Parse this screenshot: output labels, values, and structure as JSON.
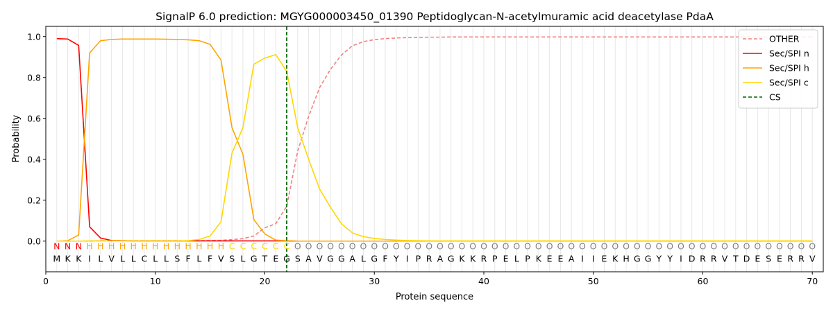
{
  "chart_data": {
    "type": "line",
    "title": "SignalP 6.0 prediction: MGYG000003450_01390 Peptidoglycan-N-acetylmuramic acid deacetylase PdaA",
    "xlabel": "Protein sequence",
    "ylabel": "Probability",
    "xlim": [
      0,
      71
    ],
    "ylim": [
      -0.15,
      1.05
    ],
    "xticks": [
      0,
      10,
      20,
      30,
      40,
      50,
      60,
      70
    ],
    "yticks": [
      "0.0",
      "0.2",
      "0.4",
      "0.6",
      "0.8",
      "1.0"
    ],
    "legend_position": "top-right",
    "sequence": [
      "M",
      "K",
      "K",
      "I",
      "L",
      "V",
      "L",
      "L",
      "C",
      "L",
      "L",
      "S",
      "F",
      "L",
      "F",
      "V",
      "S",
      "L",
      "G",
      "T",
      "E",
      "G",
      "S",
      "A",
      "V",
      "G",
      "G",
      "A",
      "L",
      "G",
      "F",
      "Y",
      "I",
      "P",
      "R",
      "A",
      "G",
      "K",
      "K",
      "R",
      "P",
      "E",
      "L",
      "P",
      "K",
      "E",
      "E",
      "A",
      "I",
      "I",
      "E",
      "K",
      "H",
      "G",
      "G",
      "Y",
      "Y",
      "I",
      "D",
      "R",
      "R",
      "V",
      "T",
      "D",
      "E",
      "S",
      "E",
      "R",
      "R",
      "V"
    ],
    "labels": [
      "N",
      "N",
      "N",
      "H",
      "H",
      "H",
      "H",
      "H",
      "H",
      "H",
      "H",
      "H",
      "H",
      "H",
      "H",
      "H",
      "C",
      "C",
      "C",
      "C",
      "C",
      "C",
      "O",
      "O",
      "O",
      "O",
      "O",
      "O",
      "O",
      "O",
      "O",
      "O",
      "O",
      "O",
      "O",
      "O",
      "O",
      "O",
      "O",
      "O",
      "O",
      "O",
      "O",
      "O",
      "O",
      "O",
      "O",
      "O",
      "O",
      "O",
      "O",
      "O",
      "O",
      "O",
      "O",
      "O",
      "O",
      "O",
      "O",
      "O",
      "O",
      "O",
      "O",
      "O",
      "O",
      "O",
      "O",
      "O",
      "O",
      "O"
    ],
    "label_colors": {
      "N": "#ff0000",
      "H": "#ffa500",
      "C": "#ffd700",
      "O": "#808080"
    },
    "cs_position": 22,
    "series": [
      {
        "name": "OTHER",
        "color": "#f08080",
        "dash": true,
        "values": [
          0.0,
          0.0,
          0.0,
          0.0,
          0.002,
          0.002,
          0.002,
          0.002,
          0.002,
          0.002,
          0.002,
          0.002,
          0.002,
          0.002,
          0.003,
          0.004,
          0.007,
          0.012,
          0.025,
          0.065,
          0.085,
          0.17,
          0.44,
          0.61,
          0.75,
          0.84,
          0.91,
          0.955,
          0.975,
          0.985,
          0.99,
          0.993,
          0.995,
          0.996,
          0.997,
          0.997,
          0.998,
          0.998,
          0.998,
          0.998,
          0.998,
          0.998,
          0.998,
          0.998,
          0.998,
          0.998,
          0.998,
          0.998,
          0.998,
          0.998,
          0.998,
          0.998,
          0.998,
          0.998,
          0.998,
          0.998,
          0.998,
          0.998,
          0.998,
          0.998,
          0.998,
          0.998,
          0.998,
          0.998,
          0.998,
          0.998,
          0.998,
          0.998,
          0.998,
          0.998
        ]
      },
      {
        "name": "Sec/SPI n",
        "color": "#ff0000",
        "dash": false,
        "values": [
          0.99,
          0.988,
          0.957,
          0.07,
          0.015,
          0.003,
          0.002,
          0.001,
          0.001,
          0.001,
          0.001,
          0.001,
          0.001,
          0.001,
          0.001,
          0.001,
          0.001,
          0.001,
          0.001,
          0.001,
          0.001,
          0.001,
          0.0,
          0.0,
          0.0,
          0.0,
          0.0,
          0.0,
          0.0,
          0.0,
          0.0,
          0.0,
          0.0,
          0.0,
          0.0,
          0.0,
          0.0,
          0.0,
          0.0,
          0.0,
          0.0,
          0.0,
          0.0,
          0.0,
          0.0,
          0.0,
          0.0,
          0.0,
          0.0,
          0.0,
          0.0,
          0.0,
          0.0,
          0.0,
          0.0,
          0.0,
          0.0,
          0.0,
          0.0,
          0.0,
          0.0,
          0.0,
          0.0,
          0.0,
          0.0,
          0.0,
          0.0,
          0.0,
          0.0,
          0.0
        ]
      },
      {
        "name": "Sec/SPI h",
        "color": "#ffa500",
        "dash": false,
        "values": [
          0.0,
          0.002,
          0.03,
          0.92,
          0.98,
          0.986,
          0.988,
          0.988,
          0.988,
          0.988,
          0.987,
          0.986,
          0.984,
          0.98,
          0.962,
          0.885,
          0.555,
          0.425,
          0.105,
          0.035,
          0.005,
          0.002,
          0.0,
          0.0,
          0.0,
          0.0,
          0.0,
          0.0,
          0.0,
          0.0,
          0.0,
          0.0,
          0.0,
          0.0,
          0.0,
          0.0,
          0.0,
          0.0,
          0.0,
          0.0,
          0.0,
          0.0,
          0.0,
          0.0,
          0.0,
          0.0,
          0.0,
          0.0,
          0.0,
          0.0,
          0.0,
          0.0,
          0.0,
          0.0,
          0.0,
          0.0,
          0.0,
          0.0,
          0.0,
          0.0,
          0.0,
          0.0,
          0.0,
          0.0,
          0.0,
          0.0,
          0.0,
          0.0,
          0.0,
          0.0
        ]
      },
      {
        "name": "Sec/SPI c",
        "color": "#ffd700",
        "dash": false,
        "values": [
          0.0,
          0.0,
          0.0,
          0.001,
          0.001,
          0.001,
          0.001,
          0.001,
          0.001,
          0.001,
          0.001,
          0.001,
          0.002,
          0.008,
          0.025,
          0.095,
          0.43,
          0.555,
          0.865,
          0.895,
          0.912,
          0.83,
          0.555,
          0.4,
          0.255,
          0.165,
          0.085,
          0.04,
          0.022,
          0.013,
          0.008,
          0.005,
          0.003,
          0.002,
          0.001,
          0.001,
          0.001,
          0.001,
          0.001,
          0.001,
          0.001,
          0.001,
          0.001,
          0.001,
          0.001,
          0.001,
          0.001,
          0.001,
          0.001,
          0.001,
          0.001,
          0.001,
          0.001,
          0.001,
          0.001,
          0.001,
          0.001,
          0.001,
          0.001,
          0.001,
          0.001,
          0.001,
          0.001,
          0.001,
          0.001,
          0.001,
          0.001,
          0.001,
          0.001,
          0.001
        ]
      }
    ],
    "cs_legend": {
      "name": "CS",
      "color": "#006400"
    }
  }
}
